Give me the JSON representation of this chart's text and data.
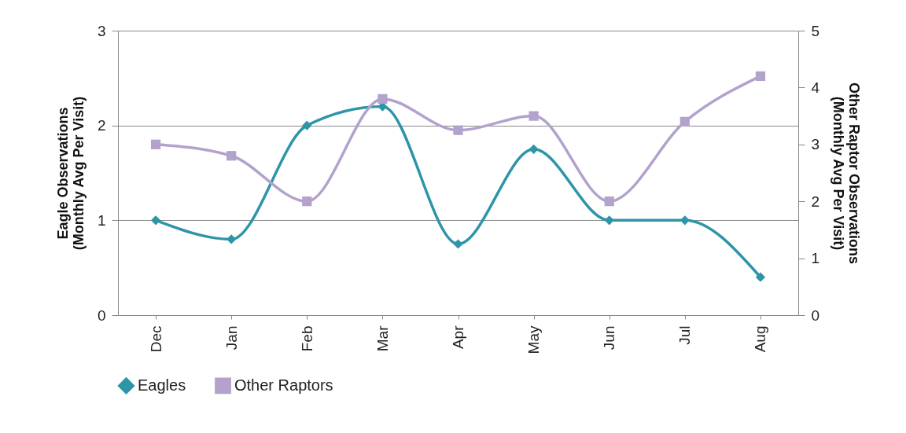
{
  "chart_data": {
    "type": "line",
    "categories": [
      "Dec",
      "Jan",
      "Feb",
      "Mar",
      "Apr",
      "May",
      "Jun",
      "Jul",
      "Aug"
    ],
    "ylabel": "Eagle Observations\n(Monthly Avg Per Visit)",
    "y2label": "Other Raptor Observations\n(Monthly Avg Per Visit)",
    "ylim": [
      0,
      3
    ],
    "yticks": [
      0,
      1,
      2,
      3
    ],
    "y2lim": [
      0,
      5
    ],
    "y2ticks": [
      0,
      1,
      2,
      3,
      4,
      5
    ],
    "grid": "y",
    "legend": "bottom",
    "series": [
      {
        "name": "Eagles",
        "color": "#2e95a8",
        "marker": "diamond",
        "values": [
          1.0,
          0.8,
          2.0,
          2.2,
          0.75,
          1.75,
          1.0,
          1.0,
          0.4
        ]
      },
      {
        "name": "Other Raptors",
        "color": "#b3a2cc",
        "marker": "square",
        "axis": "y2",
        "values": [
          3.0,
          2.8,
          2.0,
          3.8,
          3.25,
          3.5,
          2.0,
          3.4,
          4.2
        ]
      }
    ]
  }
}
